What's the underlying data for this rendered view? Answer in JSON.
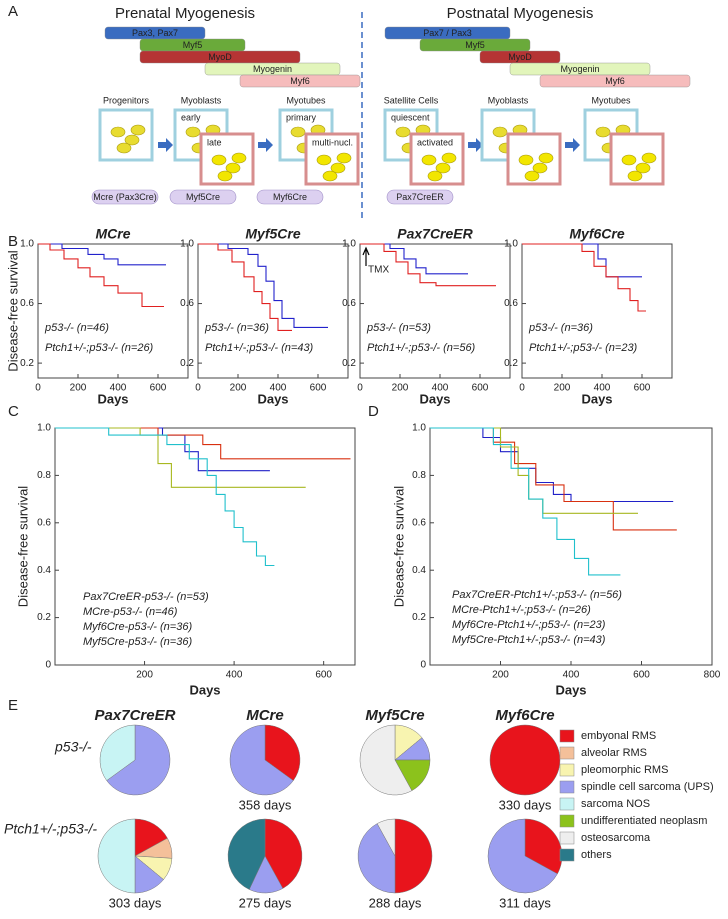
{
  "panel_labels": [
    "A",
    "B",
    "C",
    "D",
    "E"
  ],
  "diagram": {
    "sections": [
      {
        "title": "Prenatal Myogenesis",
        "genes": [
          "Pax3, Pax7",
          "Myf5",
          "MyoD",
          "Myogenin",
          "Myf6"
        ],
        "stages": [
          {
            "label": "Progenitors"
          },
          {
            "label": "Myoblasts",
            "states": [
              "early",
              "late"
            ]
          },
          {
            "label": "Myotubes",
            "states": [
              "primary",
              "multi-nucl."
            ]
          }
        ],
        "cre": [
          "Mcre (Pax3Cre)",
          "Myf5Cre",
          "Myf6Cre"
        ]
      },
      {
        "title": "Postnatal Myogenesis",
        "genes": [
          "Pax7 / Pax3",
          "Myf5",
          "MyoD",
          "Myogenin",
          "Myf6"
        ],
        "stages": [
          {
            "label": "Satellite Cells",
            "states": [
              "quiescent",
              "activated"
            ]
          },
          {
            "label": "Myoblasts"
          },
          {
            "label": "Myotubes"
          }
        ],
        "cre": [
          "Pax7CreER"
        ]
      }
    ]
  },
  "chart_data": [
    {
      "type": "line",
      "title": "MCre",
      "xlabel": "Days",
      "ylabel": "Disease-free survival",
      "xlim": [
        0,
        750
      ],
      "ylim": [
        0.1,
        1.0
      ],
      "xticks": [
        0,
        200,
        400,
        600
      ],
      "yticks": [
        0.2,
        0.6,
        {
          "value": 1.0,
          "label": "1.0"
        }
      ],
      "series": [
        {
          "name": "p53-/- (n=46)",
          "color": "#2222cc",
          "x": [
            0,
            120,
            120,
            250,
            250,
            330,
            330,
            400,
            400,
            640
          ],
          "values": [
            1,
            1,
            0.97,
            0.97,
            0.93,
            0.93,
            0.9,
            0.9,
            0.86,
            0.86
          ]
        },
        {
          "name": "Ptch1+/-;p53-/- (n=26)",
          "color": "#e02020",
          "x": [
            0,
            60,
            60,
            130,
            130,
            200,
            200,
            260,
            260,
            330,
            330,
            400,
            400,
            520,
            520,
            630
          ],
          "values": [
            1,
            1,
            0.96,
            0.96,
            0.9,
            0.9,
            0.84,
            0.84,
            0.78,
            0.78,
            0.72,
            0.72,
            0.67,
            0.67,
            0.58,
            0.58
          ]
        }
      ]
    },
    {
      "type": "line",
      "title": "Myf5Cre",
      "xlabel": "Days",
      "xlim": [
        0,
        750
      ],
      "ylim": [
        0.1,
        1.0
      ],
      "xticks": [
        0,
        200,
        400,
        600
      ],
      "yticks": [
        0.2,
        0.6,
        {
          "value": 1.0,
          "label": "1.0"
        }
      ],
      "series": [
        {
          "name": "p53-/- (n=36)",
          "color": "#2222cc",
          "x": [
            0,
            150,
            150,
            250,
            250,
            300,
            300,
            340,
            340,
            380,
            380,
            420,
            420,
            480,
            480,
            650
          ],
          "values": [
            1,
            1,
            0.97,
            0.97,
            0.93,
            0.93,
            0.85,
            0.85,
            0.75,
            0.75,
            0.62,
            0.62,
            0.5,
            0.5,
            0.44,
            0.44
          ]
        },
        {
          "name": "Ptch1+/-;p53-/- (n=43)",
          "color": "#e02020",
          "x": [
            0,
            100,
            100,
            170,
            170,
            230,
            230,
            280,
            280,
            320,
            320,
            360,
            360,
            400,
            400,
            470
          ],
          "values": [
            1,
            1,
            0.96,
            0.96,
            0.88,
            0.88,
            0.78,
            0.78,
            0.68,
            0.68,
            0.6,
            0.6,
            0.5,
            0.5,
            0.42,
            0.42
          ]
        }
      ]
    },
    {
      "type": "line",
      "title": "Pax7CreER",
      "xlabel": "Days",
      "annotation": "TMX",
      "xlim": [
        0,
        750
      ],
      "ylim": [
        0.1,
        1.0
      ],
      "xticks": [
        0,
        200,
        400,
        600
      ],
      "yticks": [
        0.2,
        0.6,
        {
          "value": 1.0,
          "label": "1.0"
        }
      ],
      "series": [
        {
          "name": "p53-/- (n=53)",
          "color": "#2222cc",
          "x": [
            0,
            150,
            150,
            220,
            220,
            280,
            280,
            330,
            330,
            540
          ],
          "values": [
            1,
            1,
            0.97,
            0.97,
            0.9,
            0.9,
            0.84,
            0.84,
            0.8,
            0.8
          ]
        },
        {
          "name": "Ptch1+/-;p53-/- (n=56)",
          "color": "#e02020",
          "x": [
            0,
            120,
            120,
            180,
            180,
            240,
            240,
            300,
            300,
            380,
            380,
            680
          ],
          "values": [
            1,
            1,
            0.95,
            0.95,
            0.88,
            0.88,
            0.8,
            0.8,
            0.74,
            0.74,
            0.72,
            0.72
          ]
        }
      ]
    },
    {
      "type": "line",
      "title": "Myf6Cre",
      "xlabel": "Days",
      "xlim": [
        0,
        750
      ],
      "ylim": [
        0.1,
        1.0
      ],
      "xticks": [
        0,
        200,
        400,
        600
      ],
      "yticks": [
        0.2,
        0.6,
        {
          "value": 1.0,
          "label": "1.0"
        }
      ],
      "series": [
        {
          "name": "p53-/- (n=36)",
          "color": "#2222cc",
          "x": [
            0,
            380,
            380,
            420,
            420,
            600
          ],
          "values": [
            1,
            1,
            0.9,
            0.9,
            0.78,
            0.78
          ]
        },
        {
          "name": "Ptch1+/-;p53-/- (n=23)",
          "color": "#e02020",
          "x": [
            0,
            300,
            300,
            360,
            360,
            420,
            420,
            480,
            480,
            540,
            540,
            580,
            580,
            620
          ],
          "values": [
            1,
            1,
            0.95,
            0.95,
            0.85,
            0.85,
            0.78,
            0.78,
            0.7,
            0.7,
            0.62,
            0.62,
            0.55,
            0.55
          ]
        }
      ]
    },
    {
      "type": "line",
      "xlabel": "Days",
      "ylabel": "Disease-free survival",
      "xlim": [
        0,
        670
      ],
      "ylim": [
        0,
        1.0
      ],
      "xticks": [
        200,
        400,
        600
      ],
      "yticks": [
        0,
        0.2,
        0.4,
        0.6,
        0.8,
        {
          "value": 1.0,
          "label": "1.0"
        }
      ],
      "series": [
        {
          "name": "Pax7CreER-p53-/- (n=53)",
          "color": "#2020c8",
          "x": [
            0,
            240,
            240,
            290,
            290,
            320,
            320,
            480
          ],
          "values": [
            1,
            1,
            0.97,
            0.97,
            0.9,
            0.9,
            0.82,
            0.82
          ]
        },
        {
          "name": "MCre-p53-/- (n=46)",
          "color": "#d83010",
          "x": [
            0,
            230,
            230,
            330,
            330,
            370,
            370,
            660
          ],
          "values": [
            1,
            1,
            0.97,
            0.97,
            0.93,
            0.93,
            0.87,
            0.87
          ]
        },
        {
          "name": "Myf6Cre-p53-/- (n=36)",
          "color": "#a8b820",
          "x": [
            0,
            190,
            190,
            230,
            230,
            260,
            260,
            560
          ],
          "values": [
            1,
            1,
            0.97,
            0.97,
            0.85,
            0.85,
            0.75,
            0.75
          ]
        },
        {
          "name": "Myf5Cre-p53-/- (n=36)",
          "color": "#20c0cc",
          "x": [
            0,
            120,
            120,
            250,
            250,
            300,
            300,
            340,
            340,
            360,
            360,
            380,
            380,
            400,
            400,
            420,
            420,
            450,
            450,
            470,
            470,
            490
          ],
          "values": [
            1,
            1,
            0.97,
            0.97,
            0.93,
            0.93,
            0.87,
            0.87,
            0.8,
            0.8,
            0.72,
            0.72,
            0.65,
            0.65,
            0.58,
            0.58,
            0.52,
            0.52,
            0.46,
            0.46,
            0.42,
            0.42
          ]
        }
      ]
    },
    {
      "type": "line",
      "xlabel": "Days",
      "ylabel": "Disease-free survival",
      "xlim": [
        0,
        800
      ],
      "ylim": [
        0,
        1.0
      ],
      "xticks": [
        200,
        400,
        600,
        800
      ],
      "yticks": [
        0,
        0.2,
        0.4,
        0.6,
        0.8,
        {
          "value": 1.0,
          "label": "1.0"
        }
      ],
      "series": [
        {
          "name": "Pax7CreER-Ptch1+/-;p53-/- (n=56)",
          "color": "#2020c8",
          "x": [
            0,
            150,
            150,
            200,
            200,
            250,
            250,
            300,
            300,
            350,
            350,
            400,
            400,
            690
          ],
          "values": [
            1,
            1,
            0.96,
            0.96,
            0.9,
            0.9,
            0.83,
            0.83,
            0.77,
            0.77,
            0.72,
            0.72,
            0.69,
            0.69
          ]
        },
        {
          "name": "MCre-Ptch1+/-;p53-/- (n=26)",
          "color": "#d83010",
          "x": [
            0,
            180,
            180,
            240,
            240,
            300,
            300,
            380,
            380,
            520,
            520,
            700
          ],
          "values": [
            1,
            1,
            0.94,
            0.94,
            0.85,
            0.85,
            0.76,
            0.76,
            0.69,
            0.69,
            0.57,
            0.57
          ]
        },
        {
          "name": "Myf6Cre-Ptch1+/-;p53-/- (n=23)",
          "color": "#a8b820",
          "x": [
            0,
            200,
            200,
            250,
            250,
            280,
            280,
            320,
            320,
            590
          ],
          "values": [
            1,
            1,
            0.92,
            0.92,
            0.8,
            0.8,
            0.7,
            0.7,
            0.64,
            0.64
          ]
        },
        {
          "name": "Myf5Cre-Ptch1+/-;p53-/- (n=43)",
          "color": "#20c0cc",
          "x": [
            0,
            180,
            180,
            230,
            230,
            280,
            280,
            320,
            320,
            360,
            360,
            410,
            410,
            450,
            450,
            540
          ],
          "values": [
            1,
            1,
            0.93,
            0.93,
            0.83,
            0.83,
            0.7,
            0.7,
            0.62,
            0.62,
            0.53,
            0.53,
            0.45,
            0.45,
            0.38,
            0.38
          ]
        }
      ]
    },
    {
      "type": "pie",
      "columns": [
        "Pax7CreER",
        "MCre",
        "Myf5Cre",
        "Myf6Cre"
      ],
      "rows": [
        "p53-/-",
        "Ptch1+/-;p53-/-"
      ],
      "categories": [
        "embyonal RMS",
        "alveolar RMS",
        "pleomorphic RMS",
        "spindle cell sarcoma (UPS)",
        "sarcoma NOS",
        "undifferentiated neoplasm",
        "osteosarcoma",
        "others"
      ],
      "colors": [
        "#e8141c",
        "#f4c09a",
        "#f8f4b0",
        "#9b9ef0",
        "#c8f4f4",
        "#8cc21c",
        "#eeeeee",
        "#2a7a8a"
      ],
      "values": [
        [
          [
            0,
            0,
            0,
            65,
            35,
            0,
            0,
            0
          ],
          [
            35,
            0,
            0,
            65,
            0,
            0,
            0,
            0
          ],
          [
            0,
            0,
            14,
            11,
            0,
            17,
            58,
            0
          ],
          [
            100,
            0,
            0,
            0,
            0,
            0,
            0,
            0
          ]
        ],
        [
          [
            17,
            9,
            10,
            14,
            50,
            0,
            0,
            0
          ],
          [
            42,
            0,
            0,
            15,
            0,
            0,
            0,
            43
          ],
          [
            50,
            0,
            0,
            42,
            0,
            0,
            8,
            0
          ],
          [
            33,
            0,
            0,
            67,
            0,
            0,
            0,
            0
          ]
        ]
      ],
      "annotations": [
        [
          null,
          "358 days",
          null,
          "330 days"
        ],
        [
          "303 days",
          "275 days",
          "288 days",
          "311 days"
        ]
      ]
    }
  ]
}
